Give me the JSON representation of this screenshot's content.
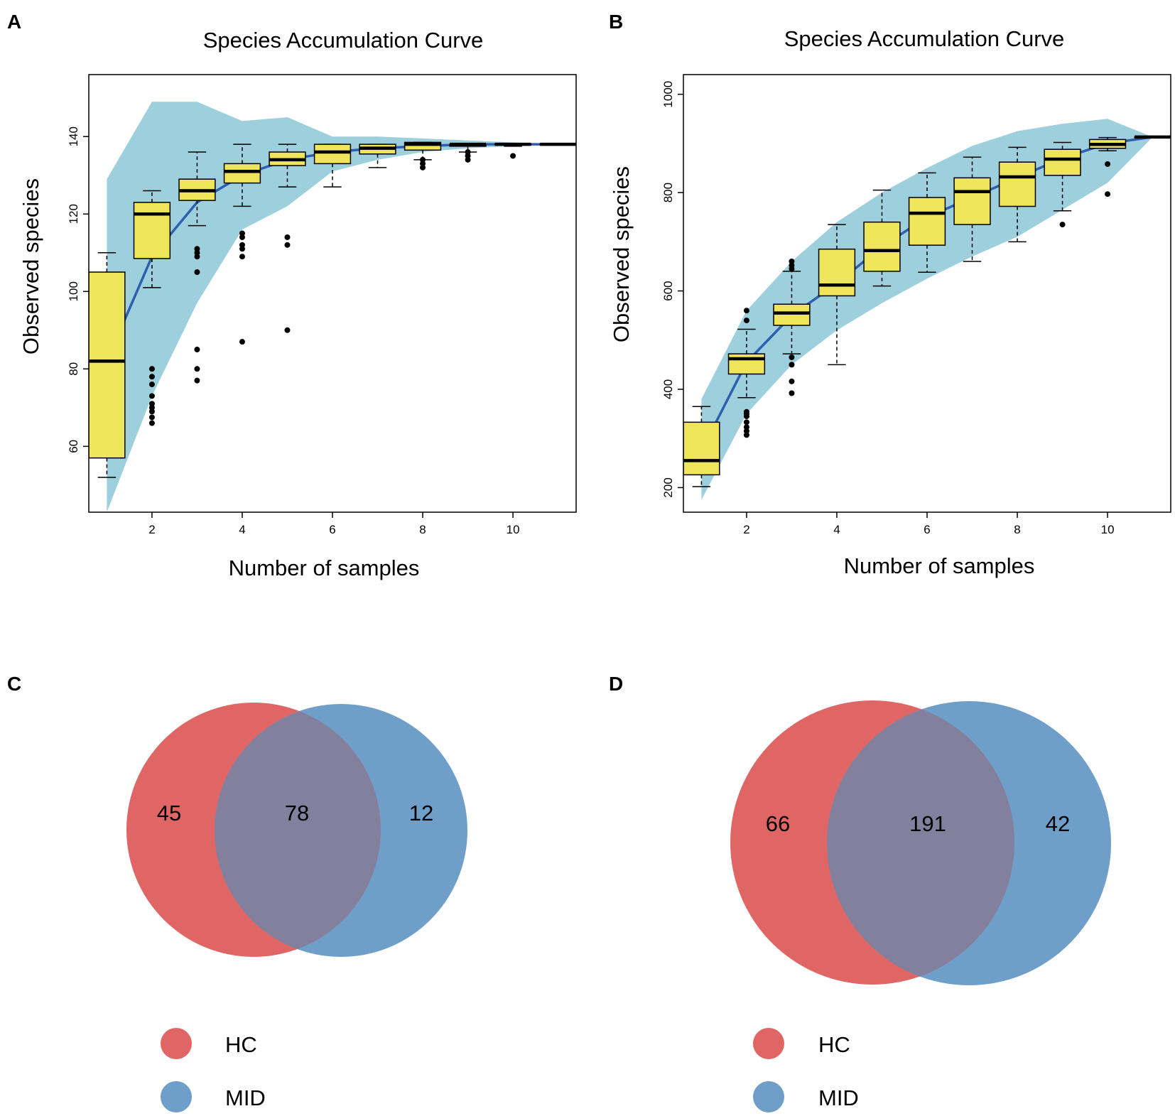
{
  "colors": {
    "ribbon": "#9ecfdc",
    "box_fill": "#eee55a",
    "curve": "#2f5faf",
    "hc": "#e06666",
    "mid": "#6f9fc8",
    "overlap": "#82809c"
  },
  "chart_data": [
    {
      "panel": "A",
      "type": "box",
      "title": "Species Accumulation Curve",
      "xlabel": "Number of samples",
      "ylabel": "Observed species",
      "xlim": [
        0.6,
        11.4
      ],
      "ylim": [
        43,
        156
      ],
      "x_ticks": [
        2,
        4,
        6,
        8,
        10
      ],
      "y_ticks": [
        60,
        80,
        100,
        120,
        140
      ],
      "curve": {
        "x": [
          1,
          2,
          3,
          4,
          5,
          6,
          7,
          8,
          9,
          10,
          11
        ],
        "y": [
          82,
          109,
          123,
          130,
          134,
          136,
          137,
          137.5,
          138,
          138,
          138
        ]
      },
      "ribbon": {
        "x": [
          1,
          2,
          3,
          4,
          5,
          6,
          7,
          8,
          9,
          10,
          11
        ],
        "upper": [
          129,
          149,
          149,
          144,
          145,
          140,
          140,
          139.5,
          139,
          138.5,
          138
        ],
        "lower": [
          43,
          73,
          97,
          116,
          122,
          131,
          134,
          136,
          137,
          137.5,
          138
        ]
      },
      "boxes": [
        {
          "x": 1,
          "min": 52,
          "q1": 57,
          "median": 82,
          "q3": 105,
          "max": 110,
          "outliers": []
        },
        {
          "x": 2,
          "min": 101,
          "q1": 108.5,
          "median": 120,
          "q3": 123,
          "max": 126,
          "outliers": [
            66,
            67.5,
            69,
            70,
            71,
            73,
            76,
            78,
            80
          ]
        },
        {
          "x": 3,
          "min": 117,
          "q1": 123.5,
          "median": 126,
          "q3": 129,
          "max": 136,
          "outliers": [
            77,
            80,
            85,
            105,
            109,
            110,
            111
          ]
        },
        {
          "x": 4,
          "min": 122,
          "q1": 128,
          "median": 131,
          "q3": 133,
          "max": 138,
          "outliers": [
            87,
            109,
            111,
            112,
            114,
            115
          ]
        },
        {
          "x": 5,
          "min": 127,
          "q1": 132.5,
          "median": 134,
          "q3": 136,
          "max": 138,
          "outliers": [
            90,
            112,
            114
          ]
        },
        {
          "x": 6,
          "min": 127,
          "q1": 133,
          "median": 136,
          "q3": 138,
          "max": 138,
          "outliers": []
        },
        {
          "x": 7,
          "min": 132,
          "q1": 135.5,
          "median": 137,
          "q3": 138,
          "max": 138,
          "outliers": []
        },
        {
          "x": 8,
          "min": 134,
          "q1": 136.5,
          "median": 138,
          "q3": 138.5,
          "max": 138.5,
          "outliers": [
            132,
            133,
            134
          ]
        },
        {
          "x": 9,
          "min": 136,
          "q1": 137.5,
          "median": 138,
          "q3": 138,
          "max": 138,
          "outliers": [
            134,
            135,
            136
          ]
        },
        {
          "x": 10,
          "min": 137.5,
          "q1": 138,
          "median": 138,
          "q3": 138,
          "max": 138,
          "outliers": [
            135
          ]
        },
        {
          "x": 11,
          "min": 138,
          "q1": 138,
          "median": 138,
          "q3": 138,
          "max": 138,
          "outliers": []
        }
      ]
    },
    {
      "panel": "B",
      "type": "box",
      "title": "Species Accumulation Curve",
      "xlabel": "Number of samples",
      "ylabel": "Observed species",
      "xlim": [
        0.6,
        11.4
      ],
      "ylim": [
        150,
        1040
      ],
      "x_ticks": [
        2,
        4,
        6,
        8,
        10
      ],
      "y_ticks": [
        200,
        400,
        600,
        800,
        1000
      ],
      "curve": {
        "x": [
          1,
          2,
          3,
          4,
          5,
          6,
          7,
          8,
          9,
          10,
          11
        ],
        "y": [
          275,
          455,
          550,
          615,
          690,
          750,
          790,
          830,
          870,
          900,
          913
        ]
      },
      "ribbon": {
        "x": [
          1,
          2,
          3,
          4,
          5,
          6,
          7,
          8,
          9,
          10,
          11
        ],
        "upper": [
          380,
          560,
          660,
          740,
          800,
          850,
          895,
          925,
          940,
          950,
          913
        ],
        "lower": [
          175,
          350,
          450,
          520,
          575,
          625,
          670,
          710,
          765,
          820,
          913
        ]
      },
      "boxes": [
        {
          "x": 1,
          "min": 202,
          "q1": 226,
          "median": 255,
          "q3": 333,
          "max": 365,
          "outliers": []
        },
        {
          "x": 2,
          "min": 383,
          "q1": 431,
          "median": 462,
          "q3": 472,
          "max": 522,
          "outliers": [
            307,
            315,
            323,
            333,
            345,
            350,
            354,
            540,
            560
          ]
        },
        {
          "x": 3,
          "min": 472,
          "q1": 530,
          "median": 555,
          "q3": 573,
          "max": 640,
          "outliers": [
            392,
            416,
            450,
            465,
            645,
            652,
            660
          ]
        },
        {
          "x": 4,
          "min": 450,
          "q1": 590,
          "median": 612,
          "q3": 685,
          "max": 735,
          "outliers": []
        },
        {
          "x": 5,
          "min": 610,
          "q1": 640,
          "median": 682,
          "q3": 740,
          "max": 805,
          "outliers": []
        },
        {
          "x": 6,
          "min": 638,
          "q1": 693,
          "median": 758,
          "q3": 790,
          "max": 840,
          "outliers": []
        },
        {
          "x": 7,
          "min": 660,
          "q1": 735,
          "median": 802,
          "q3": 830,
          "max": 872,
          "outliers": []
        },
        {
          "x": 8,
          "min": 700,
          "q1": 772,
          "median": 832,
          "q3": 862,
          "max": 892,
          "outliers": []
        },
        {
          "x": 9,
          "min": 763,
          "q1": 835,
          "median": 868,
          "q3": 888,
          "max": 902,
          "outliers": [
            735
          ]
        },
        {
          "x": 10,
          "min": 885,
          "q1": 890,
          "median": 898,
          "q3": 908,
          "max": 912,
          "outliers": [
            797,
            858
          ]
        },
        {
          "x": 11,
          "min": 913,
          "q1": 913,
          "median": 913,
          "q3": 913,
          "max": 913,
          "outliers": []
        }
      ]
    },
    {
      "panel": "C",
      "type": "venn",
      "sets": [
        {
          "name": "HC",
          "only": 45
        },
        {
          "name": "MID",
          "only": 12
        }
      ],
      "intersection": 78,
      "legend": [
        "HC",
        "MID"
      ]
    },
    {
      "panel": "D",
      "type": "venn",
      "sets": [
        {
          "name": "HC",
          "only": 66
        },
        {
          "name": "MID",
          "only": 42
        }
      ],
      "intersection": 191,
      "legend": [
        "HC",
        "MID"
      ]
    }
  ]
}
